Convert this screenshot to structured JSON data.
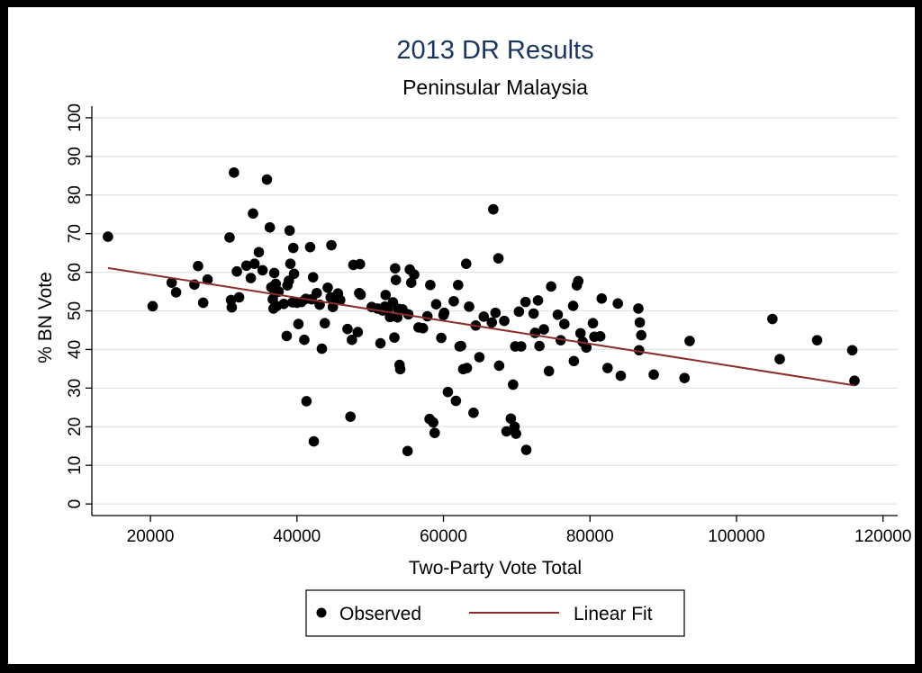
{
  "colors": {
    "background": "#ffffff",
    "frame": "#000000",
    "title": "#1b3561",
    "grid": "#dde5ec",
    "points": "#000000",
    "fit_line": "#8b2d2d",
    "text": "#000000"
  },
  "chart_data": {
    "type": "scatter",
    "title": "2013 DR Results",
    "subtitle": "Peninsular Malaysia",
    "xlabel": "Two-Party Vote Total",
    "ylabel": "% BN Vote",
    "xlim": [
      12000,
      122000
    ],
    "ylim": [
      -3,
      103
    ],
    "x_ticks": [
      20000,
      40000,
      60000,
      80000,
      100000,
      120000
    ],
    "x_tick_labels": [
      "20000",
      "40000",
      "60000",
      "80000",
      "100000",
      "120000"
    ],
    "y_ticks": [
      0,
      10,
      20,
      30,
      40,
      50,
      60,
      70,
      80,
      90,
      100
    ],
    "y_tick_labels": [
      "0",
      "10",
      "20",
      "30",
      "40",
      "50",
      "60",
      "70",
      "80",
      "90",
      "100"
    ],
    "grid": true,
    "legend": {
      "position": "bottom",
      "items": [
        {
          "label": "Observed",
          "kind": "marker"
        },
        {
          "label": "Linear Fit",
          "kind": "line"
        }
      ]
    },
    "series": [
      {
        "name": "Observed",
        "type": "scatter",
        "points": [
          [
            14200,
            69.2
          ],
          [
            20300,
            51.2
          ],
          [
            22900,
            57.3
          ],
          [
            23500,
            54.8
          ],
          [
            26000,
            56.8
          ],
          [
            26500,
            61.6
          ],
          [
            27200,
            52.1
          ],
          [
            27800,
            58.1
          ],
          [
            30800,
            69.0
          ],
          [
            31000,
            52.8
          ],
          [
            31100,
            50.9
          ],
          [
            31400,
            85.8
          ],
          [
            31800,
            60.2
          ],
          [
            32100,
            53.5
          ],
          [
            33100,
            61.7
          ],
          [
            33700,
            58.5
          ],
          [
            34000,
            75.2
          ],
          [
            34200,
            62.2
          ],
          [
            34800,
            65.2
          ],
          [
            35300,
            60.5
          ],
          [
            35900,
            84.0
          ],
          [
            36300,
            71.6
          ],
          [
            36500,
            56.1
          ],
          [
            36700,
            53.0
          ],
          [
            36900,
            59.8
          ],
          [
            37000,
            54.6
          ],
          [
            37100,
            57.0
          ],
          [
            37200,
            51.2
          ],
          [
            36800,
            50.6
          ],
          [
            37500,
            55.0
          ],
          [
            38200,
            51.8
          ],
          [
            38600,
            43.5
          ],
          [
            38700,
            56.6
          ],
          [
            38900,
            57.8
          ],
          [
            39000,
            70.8
          ],
          [
            39100,
            62.2
          ],
          [
            39400,
            52.2
          ],
          [
            39500,
            66.3
          ],
          [
            39600,
            59.6
          ],
          [
            40000,
            52.1
          ],
          [
            40200,
            46.6
          ],
          [
            40600,
            52.3
          ],
          [
            41000,
            42.5
          ],
          [
            41200,
            53.1
          ],
          [
            41300,
            26.6
          ],
          [
            41800,
            66.5
          ],
          [
            42000,
            53.0
          ],
          [
            42200,
            58.7
          ],
          [
            42300,
            16.2
          ],
          [
            42700,
            54.6
          ],
          [
            43100,
            51.6
          ],
          [
            43400,
            40.2
          ],
          [
            43800,
            46.8
          ],
          [
            44200,
            56.0
          ],
          [
            44700,
            67.0
          ],
          [
            44600,
            53.5
          ],
          [
            44900,
            51.0
          ],
          [
            45300,
            53.0
          ],
          [
            45600,
            54.5
          ],
          [
            45900,
            52.8
          ],
          [
            46900,
            45.3
          ],
          [
            47300,
            22.6
          ],
          [
            47500,
            42.5
          ],
          [
            47700,
            61.9
          ],
          [
            48300,
            44.5
          ],
          [
            48500,
            54.6
          ],
          [
            48600,
            62.1
          ],
          [
            48700,
            54.2
          ],
          [
            50200,
            51.0
          ],
          [
            51000,
            50.6
          ],
          [
            51400,
            41.6
          ],
          [
            51700,
            50.1
          ],
          [
            52000,
            51.1
          ],
          [
            52100,
            54.1
          ],
          [
            52400,
            50.3
          ],
          [
            52700,
            48.4
          ],
          [
            53100,
            52.2
          ],
          [
            53300,
            43.1
          ],
          [
            53400,
            61.0
          ],
          [
            53500,
            58.0
          ],
          [
            53700,
            48.3
          ],
          [
            53800,
            50.5
          ],
          [
            54000,
            36.0
          ],
          [
            54100,
            34.9
          ],
          [
            54400,
            50.4
          ],
          [
            55100,
            13.7
          ],
          [
            55200,
            49.1
          ],
          [
            55400,
            60.7
          ],
          [
            55600,
            57.3
          ],
          [
            56000,
            59.4
          ],
          [
            56600,
            45.7
          ],
          [
            57200,
            45.5
          ],
          [
            57800,
            48.6
          ],
          [
            58100,
            22.0
          ],
          [
            58200,
            56.7
          ],
          [
            58600,
            21.1
          ],
          [
            58800,
            18.4
          ],
          [
            59000,
            51.7
          ],
          [
            59700,
            43.0
          ],
          [
            60000,
            48.9
          ],
          [
            60100,
            49.5
          ],
          [
            60600,
            29.0
          ],
          [
            61400,
            52.5
          ],
          [
            61700,
            26.7
          ],
          [
            62000,
            56.7
          ],
          [
            62200,
            40.8
          ],
          [
            62400,
            40.9
          ],
          [
            62700,
            34.9
          ],
          [
            63100,
            62.2
          ],
          [
            63200,
            35.2
          ],
          [
            63500,
            51.1
          ],
          [
            64100,
            23.6
          ],
          [
            64400,
            46.2
          ],
          [
            64900,
            38.0
          ],
          [
            65500,
            48.5
          ],
          [
            66600,
            47.0
          ],
          [
            66800,
            76.3
          ],
          [
            67100,
            49.5
          ],
          [
            67500,
            63.6
          ],
          [
            67600,
            35.8
          ],
          [
            68300,
            47.4
          ],
          [
            68600,
            18.8
          ],
          [
            69200,
            22.1
          ],
          [
            69500,
            30.9
          ],
          [
            69700,
            20.0
          ],
          [
            69800,
            40.8
          ],
          [
            69900,
            18.2
          ],
          [
            70300,
            49.8
          ],
          [
            70600,
            40.8
          ],
          [
            71200,
            52.3
          ],
          [
            71300,
            14.0
          ],
          [
            72300,
            49.3
          ],
          [
            72500,
            44.3
          ],
          [
            72900,
            52.7
          ],
          [
            73100,
            40.9
          ],
          [
            73700,
            45.2
          ],
          [
            74400,
            34.4
          ],
          [
            74700,
            56.3
          ],
          [
            75600,
            49.0
          ],
          [
            76000,
            42.4
          ],
          [
            76500,
            46.6
          ],
          [
            77700,
            51.3
          ],
          [
            77800,
            37.0
          ],
          [
            78200,
            56.6
          ],
          [
            78400,
            57.7
          ],
          [
            78700,
            44.2
          ],
          [
            79000,
            42.0
          ],
          [
            79500,
            40.5
          ],
          [
            80400,
            46.8
          ],
          [
            80600,
            43.3
          ],
          [
            81400,
            43.4
          ],
          [
            81600,
            53.2
          ],
          [
            82400,
            35.2
          ],
          [
            83800,
            51.9
          ],
          [
            84200,
            33.2
          ],
          [
            86600,
            50.6
          ],
          [
            86700,
            39.8
          ],
          [
            86800,
            47.0
          ],
          [
            87000,
            43.7
          ],
          [
            88700,
            33.5
          ],
          [
            92900,
            32.6
          ],
          [
            93600,
            42.2
          ],
          [
            104900,
            47.9
          ],
          [
            105900,
            37.5
          ],
          [
            111000,
            42.4
          ],
          [
            115800,
            39.8
          ],
          [
            116100,
            31.9
          ]
        ]
      },
      {
        "name": "Linear Fit",
        "type": "line",
        "points": [
          [
            14200,
            61.1
          ],
          [
            116100,
            30.7
          ]
        ]
      }
    ]
  }
}
